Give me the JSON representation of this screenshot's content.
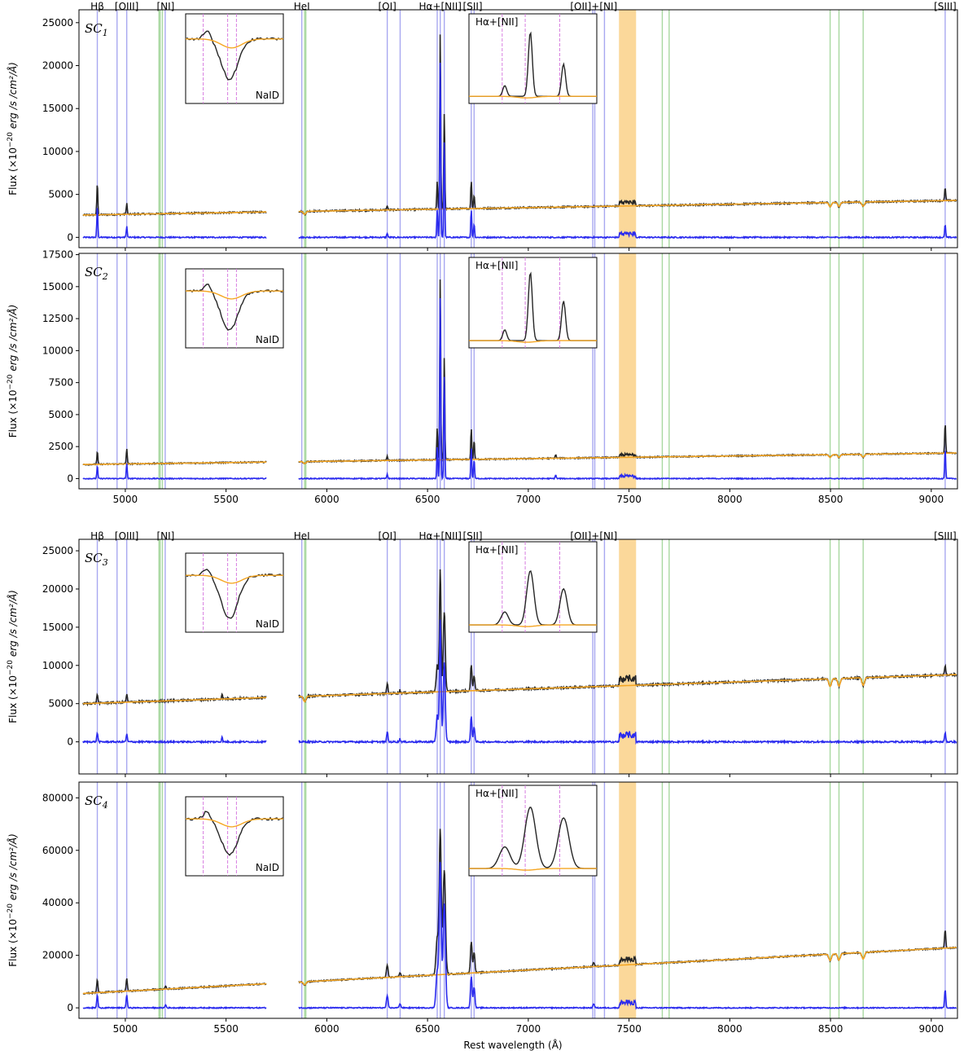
{
  "colors": {
    "observed": "#262626",
    "model": "#f5a623",
    "residual": "#2b2bee",
    "emission_line": "#a8a8f0",
    "abs_line": "#a8d8a0",
    "masked_band": "#fbd89a",
    "inset_marker": "#d77ee0"
  },
  "chart_data": {
    "type": "line",
    "xlabel": "Rest wavelength (Å)",
    "ylabel_prefix": "Flux (×10",
    "ylabel_exp": "−20",
    "ylabel_units": " erg /s /cm²/Å)",
    "xlim": [
      4770,
      9130
    ],
    "xticks": [
      5000,
      5500,
      6000,
      6500,
      7000,
      7500,
      8000,
      8500,
      9000
    ],
    "gap": [
      5700,
      5860
    ],
    "masked_band": [
      7450,
      7535
    ],
    "emission_lines": [
      4861,
      4959,
      5007,
      5198,
      5876,
      6300,
      6364,
      6548,
      6563,
      6583,
      6717,
      6731,
      7320,
      7330,
      7378,
      9069
    ],
    "absorption_lines": [
      5167,
      5173,
      5184,
      5890,
      5896,
      7665,
      7699,
      8498,
      8542,
      8662
    ],
    "line_labels": [
      {
        "text": "Hβ",
        "wl": 4861
      },
      {
        "text": "[OIII]",
        "wl": 5007
      },
      {
        "text": "[NI]",
        "wl": 5200
      },
      {
        "text": "HeI",
        "wl": 5876
      },
      {
        "text": "[OI]",
        "wl": 6300
      },
      {
        "text": "Hα+[NII]",
        "wl": 6563
      },
      {
        "text": "[SII]",
        "wl": 6724
      },
      {
        "text": "[OII]+[NI]",
        "wl": 7325
      },
      {
        "text": "[SIII]",
        "wl": 9069
      }
    ],
    "inset_labels": {
      "nai": "NaID",
      "ha": "Hα+[NII]"
    },
    "panels": [
      {
        "label": "SC",
        "sub": "1",
        "ylim": [
          -1200,
          26500
        ],
        "yticks": [
          0,
          5000,
          10000,
          15000,
          20000,
          25000
        ],
        "cont_start": 2600,
        "cont_end": 4300,
        "noise": 180,
        "peaks": [
          {
            "wl": 4861,
            "amp": 3700,
            "sig": 2.5
          },
          {
            "wl": 5007,
            "amp": 1300,
            "sig": 2.5
          },
          {
            "wl": 6300,
            "amp": 500,
            "sig": 2.5
          },
          {
            "wl": 6548,
            "amp": 3300,
            "sig": 2.5
          },
          {
            "wl": 6563,
            "amp": 20800,
            "sig": 2.5
          },
          {
            "wl": 6583,
            "amp": 11300,
            "sig": 2.5
          },
          {
            "wl": 6717,
            "amp": 3200,
            "sig": 2.5
          },
          {
            "wl": 6731,
            "amp": 1600,
            "sig": 2.5
          },
          {
            "wl": 9069,
            "amp": 1500,
            "sig": 2.5
          }
        ]
      },
      {
        "label": "SC",
        "sub": "2",
        "ylim": [
          -800,
          17600
        ],
        "yticks": [
          0,
          2500,
          5000,
          7500,
          10000,
          12500,
          15000,
          17500
        ],
        "cont_start": 1100,
        "cont_end": 2000,
        "noise": 90,
        "peaks": [
          {
            "wl": 4861,
            "amp": 1000,
            "sig": 2.5
          },
          {
            "wl": 5007,
            "amp": 1200,
            "sig": 2.5
          },
          {
            "wl": 6300,
            "amp": 350,
            "sig": 2.5
          },
          {
            "wl": 6548,
            "amp": 2500,
            "sig": 2.5
          },
          {
            "wl": 6563,
            "amp": 14400,
            "sig": 2.5
          },
          {
            "wl": 6583,
            "amp": 8100,
            "sig": 2.5
          },
          {
            "wl": 6717,
            "amp": 2400,
            "sig": 2.5
          },
          {
            "wl": 6731,
            "amp": 1500,
            "sig": 2.5
          },
          {
            "wl": 7136,
            "amp": 300,
            "sig": 2.5
          },
          {
            "wl": 9069,
            "amp": 2300,
            "sig": 2.5
          }
        ]
      },
      {
        "label": "SC",
        "sub": "3",
        "ylim": [
          -4200,
          26500
        ],
        "yticks": [
          0,
          5000,
          10000,
          15000,
          20000,
          25000
        ],
        "cont_start": 5000,
        "cont_end": 8800,
        "noise": 260,
        "peaks": [
          {
            "wl": 4861,
            "amp": 1200,
            "sig": 3
          },
          {
            "wl": 5007,
            "amp": 1000,
            "sig": 3
          },
          {
            "wl": 5480,
            "amp": 700,
            "sig": 2.5
          },
          {
            "wl": 6300,
            "amp": 1400,
            "sig": 3
          },
          {
            "wl": 6363,
            "amp": 400,
            "sig": 3
          },
          {
            "wl": 6548,
            "amp": 3500,
            "sig": 5
          },
          {
            "wl": 6563,
            "amp": 16000,
            "sig": 4
          },
          {
            "wl": 6583,
            "amp": 10500,
            "sig": 5
          },
          {
            "wl": 6717,
            "amp": 3300,
            "sig": 3.5
          },
          {
            "wl": 6731,
            "amp": 2000,
            "sig": 3.5
          },
          {
            "wl": 9069,
            "amp": 1200,
            "sig": 3
          }
        ]
      },
      {
        "label": "SC",
        "sub": "4",
        "ylim": [
          -4000,
          86000
        ],
        "yticks": [
          0,
          20000,
          40000,
          60000,
          80000
        ],
        "cont_start": 5500,
        "cont_end": 23000,
        "noise": 500,
        "peaks": [
          {
            "wl": 4861,
            "amp": 5000,
            "sig": 3
          },
          {
            "wl": 5007,
            "amp": 5000,
            "sig": 3
          },
          {
            "wl": 5200,
            "amp": 1200,
            "sig": 3
          },
          {
            "wl": 6300,
            "amp": 4500,
            "sig": 4
          },
          {
            "wl": 6363,
            "amp": 1600,
            "sig": 4
          },
          {
            "wl": 6548,
            "amp": 14000,
            "sig": 6
          },
          {
            "wl": 6563,
            "amp": 55000,
            "sig": 5
          },
          {
            "wl": 6583,
            "amp": 40000,
            "sig": 6
          },
          {
            "wl": 6717,
            "amp": 12000,
            "sig": 4
          },
          {
            "wl": 6731,
            "amp": 8000,
            "sig": 4
          },
          {
            "wl": 7325,
            "amp": 1500,
            "sig": 4
          },
          {
            "wl": 9069,
            "amp": 7000,
            "sig": 3
          }
        ]
      }
    ]
  }
}
